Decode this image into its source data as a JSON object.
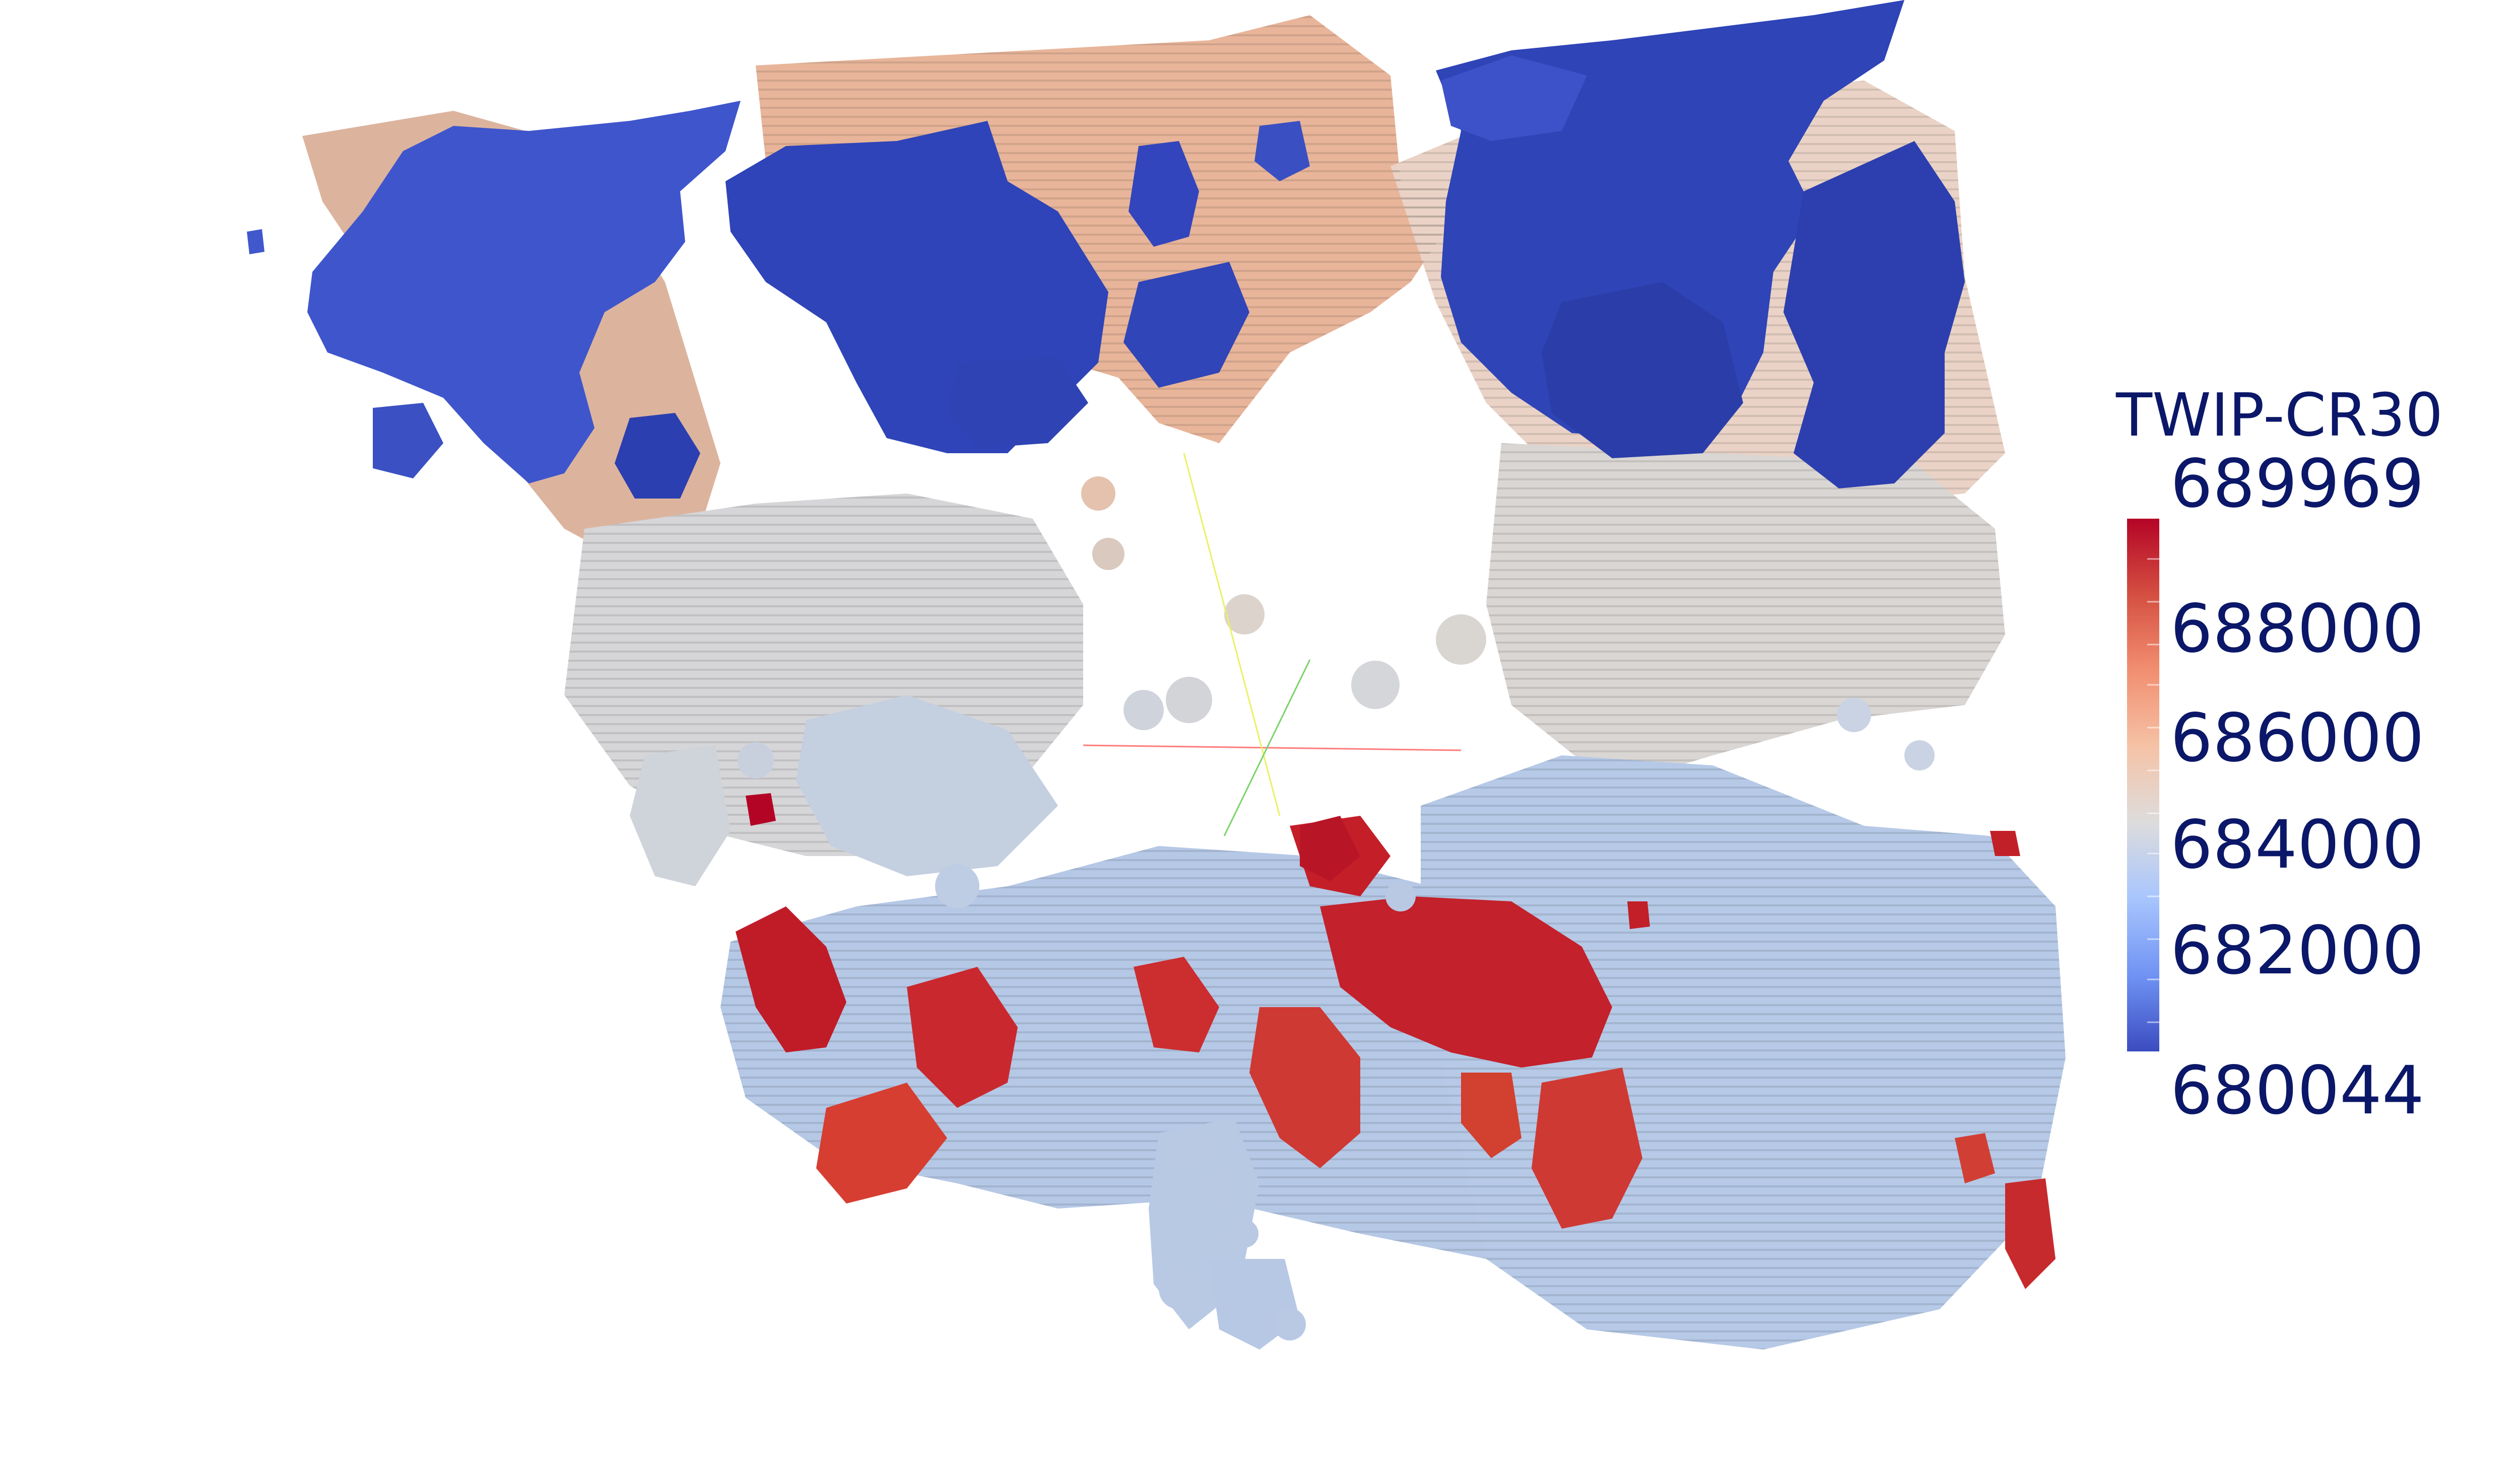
{
  "legend": {
    "title": "TWIP-CR30",
    "max_label": "689969",
    "min_label": "680044",
    "tick_labels": [
      "688000",
      "686000",
      "684000",
      "682000"
    ],
    "colormap": [
      "#3b4cc0",
      "#6f92f3",
      "#a9c6fd",
      "#dddcdc",
      "#f5c3a7",
      "#f18d6f",
      "#d44e41",
      "#b40426"
    ]
  },
  "colors": {
    "background": "#ffffff",
    "legend_text": "#0b1768",
    "axis_x": "#ff7b7b",
    "axis_y": "#e8f266",
    "axis_z": "#7bd36b"
  }
}
